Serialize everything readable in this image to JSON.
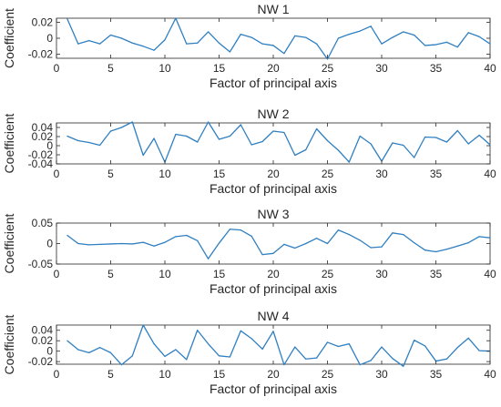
{
  "chart_data": [
    {
      "type": "line",
      "title": "NW 1",
      "xlabel": "Factor of principal axis",
      "ylabel": "Coefficient",
      "xlim": [
        0,
        40
      ],
      "ylim": [
        -0.025,
        0.025
      ],
      "xticks": [
        0,
        5,
        10,
        15,
        20,
        25,
        30,
        35,
        40
      ],
      "yticks": [
        -0.02,
        0,
        0.02
      ],
      "ytick_labels": [
        "-0.02",
        "0",
        "0.02"
      ],
      "series": [
        {
          "x": [
            1,
            2,
            3,
            4,
            5,
            6,
            7,
            8,
            9,
            10,
            11,
            12,
            13,
            14,
            15,
            16,
            17,
            18,
            19,
            20,
            21,
            22,
            23,
            24,
            25,
            26,
            27,
            28,
            29,
            30,
            31,
            32,
            33,
            34,
            35,
            36,
            37,
            38,
            39,
            40
          ],
          "values": [
            0.024,
            -0.007,
            -0.003,
            -0.007,
            0.004,
            0.0,
            -0.006,
            -0.01,
            -0.015,
            -0.002,
            0.025,
            -0.007,
            -0.006,
            0.008,
            -0.006,
            -0.017,
            0.005,
            0.001,
            -0.007,
            -0.009,
            -0.019,
            0.003,
            0.001,
            -0.007,
            -0.026,
            0.0,
            0.005,
            0.009,
            0.015,
            -0.007,
            0.001,
            0.008,
            0.004,
            -0.009,
            -0.008,
            -0.005,
            -0.011,
            0.007,
            0.002,
            -0.007
          ]
        }
      ]
    },
    {
      "type": "line",
      "title": "NW 2",
      "xlabel": "Factor of principal axis",
      "ylabel": "Coefficient",
      "xlim": [
        0,
        40
      ],
      "ylim": [
        -0.04,
        0.05
      ],
      "xticks": [
        0,
        5,
        10,
        15,
        20,
        25,
        30,
        35,
        40
      ],
      "yticks": [
        -0.04,
        -0.02,
        0,
        0.02,
        0.04
      ],
      "ytick_labels": [
        "-0.04",
        "-0.02",
        "0",
        "0.02",
        "0.04"
      ],
      "series": [
        {
          "x": [
            1,
            2,
            3,
            4,
            5,
            6,
            7,
            8,
            9,
            10,
            11,
            12,
            13,
            14,
            15,
            16,
            17,
            18,
            19,
            20,
            21,
            22,
            23,
            24,
            25,
            26,
            27,
            28,
            29,
            30,
            31,
            32,
            33,
            34,
            35,
            36,
            37,
            38,
            39,
            40
          ],
          "values": [
            0.021,
            0.011,
            0.007,
            0.001,
            0.032,
            0.04,
            0.052,
            -0.021,
            0.016,
            -0.036,
            0.025,
            0.021,
            0.008,
            0.052,
            0.014,
            0.021,
            0.046,
            0.002,
            0.009,
            0.032,
            0.029,
            -0.021,
            -0.009,
            0.037,
            0.011,
            -0.01,
            -0.036,
            0.021,
            0.004,
            -0.034,
            0.006,
            0.001,
            -0.026,
            0.019,
            0.018,
            0.008,
            0.033,
            0.004,
            0.023,
            0.002
          ]
        }
      ]
    },
    {
      "type": "line",
      "title": "NW 3",
      "xlabel": "Factor of principal axis",
      "ylabel": "Coefficient",
      "xlim": [
        0,
        40
      ],
      "ylim": [
        -0.05,
        0.05
      ],
      "xticks": [
        0,
        5,
        10,
        15,
        20,
        25,
        30,
        35,
        40
      ],
      "yticks": [
        -0.05,
        0,
        0.05
      ],
      "ytick_labels": [
        "-0.05",
        "0",
        "0.05"
      ],
      "series": [
        {
          "x": [
            1,
            2,
            3,
            4,
            5,
            6,
            7,
            8,
            9,
            10,
            11,
            12,
            13,
            14,
            15,
            16,
            17,
            18,
            19,
            20,
            21,
            22,
            23,
            24,
            25,
            26,
            27,
            28,
            29,
            30,
            31,
            32,
            33,
            34,
            35,
            36,
            37,
            38,
            39,
            40
          ],
          "values": [
            0.02,
            0.0,
            -0.003,
            -0.002,
            -0.001,
            0.0,
            -0.001,
            0.003,
            -0.006,
            0.003,
            0.017,
            0.02,
            0.007,
            -0.037,
            0.001,
            0.035,
            0.033,
            0.018,
            -0.027,
            -0.024,
            -0.002,
            -0.011,
            0.0,
            0.013,
            0.0,
            0.033,
            0.022,
            0.008,
            -0.01,
            -0.008,
            0.026,
            0.022,
            0.002,
            -0.016,
            -0.02,
            -0.014,
            -0.006,
            0.002,
            0.017,
            0.014
          ]
        }
      ]
    },
    {
      "type": "line",
      "title": "NW 4",
      "xlabel": "Factor of principal axis",
      "ylabel": "Coefficient",
      "xlim": [
        0,
        40
      ],
      "ylim": [
        -0.025,
        0.05
      ],
      "xticks": [
        0,
        5,
        10,
        15,
        20,
        25,
        30,
        35,
        40
      ],
      "yticks": [
        -0.02,
        0,
        0.02,
        0.04
      ],
      "ytick_labels": [
        "-0.02",
        "0",
        "0.02",
        "0.04"
      ],
      "series": [
        {
          "x": [
            1,
            2,
            3,
            4,
            5,
            6,
            7,
            8,
            9,
            10,
            11,
            12,
            13,
            14,
            15,
            16,
            17,
            18,
            19,
            20,
            21,
            22,
            23,
            24,
            25,
            26,
            27,
            28,
            29,
            30,
            31,
            32,
            33,
            34,
            35,
            36,
            37,
            38,
            39,
            40
          ],
          "values": [
            0.02,
            0.003,
            -0.003,
            0.007,
            -0.003,
            -0.026,
            -0.009,
            0.05,
            0.014,
            -0.01,
            0.003,
            -0.016,
            0.04,
            0.014,
            -0.009,
            -0.011,
            0.039,
            0.024,
            0.004,
            0.038,
            -0.026,
            0.008,
            -0.015,
            -0.013,
            0.017,
            0.009,
            0.014,
            -0.026,
            -0.018,
            0.008,
            -0.014,
            -0.029,
            0.021,
            0.01,
            -0.019,
            -0.015,
            0.007,
            0.025,
            0.001,
            0.0
          ]
        }
      ]
    }
  ]
}
